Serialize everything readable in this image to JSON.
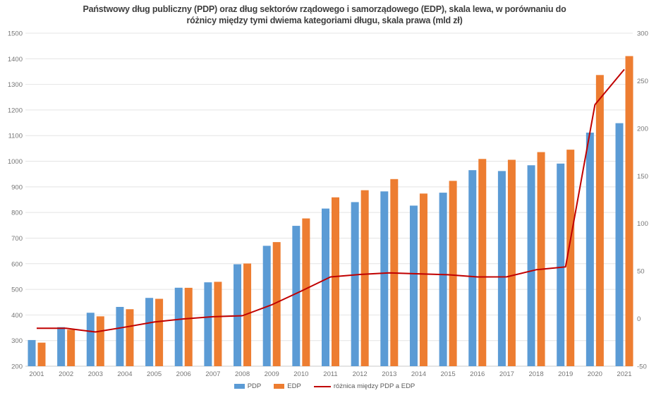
{
  "title": {
    "line1": "Państwowy dług publiczny (PDP) oraz dług sektorów rządowego i samorządowego (EDP), skala lewa, w porównaniu do",
    "line2": "różnicy między tymi dwiema kategoriami długu, skala prawa (mld zł)"
  },
  "colors": {
    "pdp_bar": "#5B9BD5",
    "edp_bar": "#ED7D31",
    "diff_line": "#C00000",
    "grid": "#e4e4e4",
    "axis_line": "#c9c9c9",
    "tick_text": "#757575",
    "title_text": "#3d3d3d",
    "legend_text": "#595959",
    "background": "#ffffff"
  },
  "chart_data": {
    "type": "bar",
    "subtype": "combo-bar-line-dual-axis",
    "title": "Państwowy dług publiczny (PDP) oraz dług sektorów rządowego i samorządowego (EDP), skala lewa, w porównaniu do różnicy między tymi dwiema kategoriami długu, skala prawa (mld zł)",
    "xlabel": "",
    "ylabel": "",
    "grid": "horizontal",
    "legend_position": "bottom",
    "categories": [
      "2001",
      "2002",
      "2003",
      "2004",
      "2005",
      "2006",
      "2007",
      "2008",
      "2009",
      "2010",
      "2011",
      "2012",
      "2013",
      "2014",
      "2015",
      "2016",
      "2017",
      "2018",
      "2019",
      "2020",
      "2021"
    ],
    "left_axis": {
      "min": 200,
      "max": 1500,
      "step": 100,
      "ticks": [
        1500,
        1400,
        1300,
        1200,
        1100,
        1000,
        900,
        800,
        700,
        600,
        500,
        400,
        300,
        200
      ]
    },
    "right_axis": {
      "min": -50,
      "max": 300,
      "step": 50,
      "ticks": [
        300,
        250,
        200,
        150,
        100,
        50,
        0,
        -50
      ]
    },
    "series": [
      {
        "name": "PDP",
        "type": "bar",
        "axis": "left",
        "color": "#5B9BD5",
        "values": [
          302.1,
          352.4,
          408.6,
          431.4,
          466.6,
          506.3,
          527.4,
          597.8,
          669.9,
          747.9,
          815.3,
          840.5,
          882.3,
          826.8,
          877.3,
          965.2,
          961.8,
          984.3,
          990.9,
          1111.8,
          1148.6
        ]
      },
      {
        "name": "EDP",
        "type": "bar",
        "axis": "left",
        "color": "#ED7D31",
        "values": [
          291.9,
          342.3,
          394.6,
          422.4,
          463.0,
          506.0,
          529.4,
          600.8,
          684.4,
          776.8,
          859.1,
          886.9,
          930.4,
          873.9,
          923.4,
          1009.0,
          1005.7,
          1035.7,
          1045.2,
          1336.6,
          1410.5
        ]
      },
      {
        "name": "różnica między PDP a EDP",
        "type": "line",
        "axis": "right",
        "color": "#C00000",
        "values": [
          -10.2,
          -10.1,
          -14.0,
          -9.0,
          -3.6,
          -0.3,
          2.0,
          3.0,
          14.5,
          28.9,
          43.8,
          46.4,
          48.1,
          47.1,
          46.1,
          43.8,
          43.9,
          51.4,
          54.3,
          224.8,
          261.9
        ]
      }
    ]
  },
  "legend": {
    "items": [
      {
        "label": "PDP",
        "swatch": "bar",
        "color": "#5B9BD5"
      },
      {
        "label": "EDP",
        "swatch": "bar",
        "color": "#ED7D31"
      },
      {
        "label": "różnica między PDP a EDP",
        "swatch": "line",
        "color": "#C00000"
      }
    ]
  }
}
